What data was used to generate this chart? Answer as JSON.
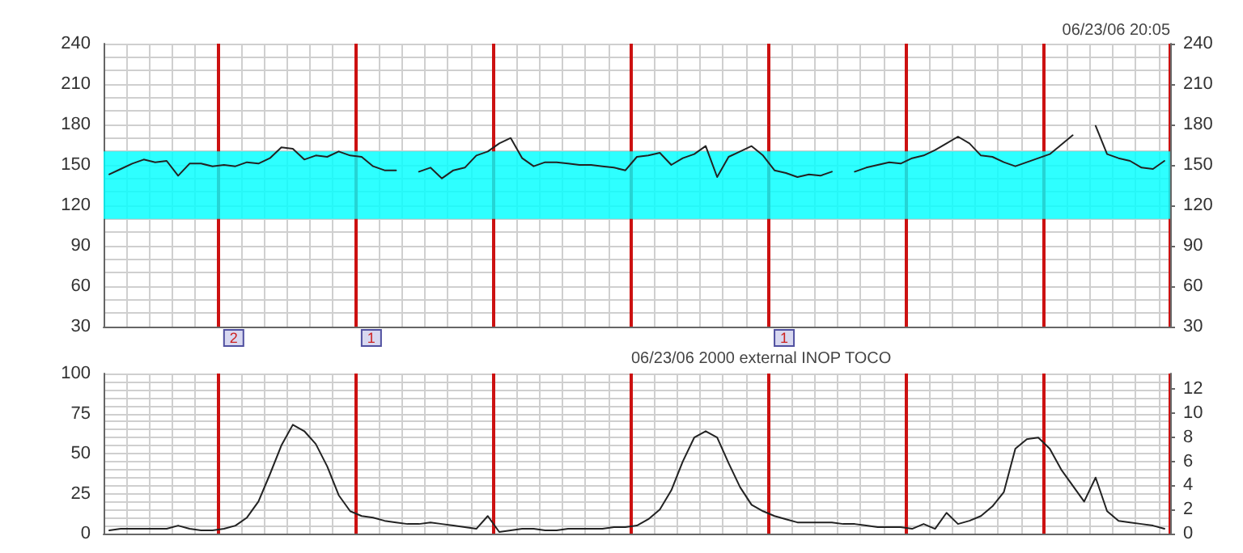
{
  "chart_data": [
    {
      "type": "line",
      "annotations": [
        "06/23/06 20:05",
        "2",
        "1",
        "1"
      ],
      "categories": [
        null,
        null,
        null,
        null,
        null,
        null,
        null,
        null,
        null,
        null,
        null,
        null,
        null,
        null,
        null,
        null,
        null,
        null,
        null,
        null,
        null,
        null,
        null,
        null,
        null,
        null,
        null,
        null,
        null,
        null,
        null,
        null,
        null,
        null,
        null,
        null,
        null,
        null,
        null,
        null,
        null,
        null,
        null,
        null,
        null,
        null,
        null,
        null,
        null,
        null,
        null,
        null,
        null,
        null,
        null,
        null,
        null,
        null,
        null,
        null,
        null,
        null,
        null,
        null,
        null,
        null,
        null,
        null,
        null,
        null,
        null,
        null,
        null,
        null,
        null,
        null,
        null,
        null,
        null,
        null,
        null,
        null,
        null,
        null,
        null,
        null,
        null,
        null,
        null,
        null,
        null,
        null,
        null
      ],
      "series": [
        {
          "color": "#222222",
          "values": [
            143,
            147,
            151,
            154,
            152,
            153,
            142,
            151,
            151,
            149,
            150,
            149,
            152,
            151,
            155,
            163,
            162,
            154,
            157,
            156,
            160,
            157,
            156,
            149,
            146,
            146,
            null,
            145,
            148,
            140,
            146,
            148,
            157,
            160,
            166,
            170,
            155,
            149,
            152,
            152,
            151,
            150,
            150,
            149,
            148,
            146,
            156,
            157,
            159,
            150,
            155,
            158,
            164,
            141,
            156,
            160,
            164,
            157,
            146,
            144,
            141,
            143,
            142,
            145,
            null,
            145,
            148,
            150,
            152,
            151,
            155,
            157,
            161,
            166,
            171,
            166,
            157,
            156,
            152,
            149,
            152,
            155,
            158,
            165,
            172,
            null,
            179,
            158,
            155,
            153,
            148,
            147,
            153
          ]
        }
      ],
      "ylim": [
        30,
        240
      ],
      "yticks": [
        30,
        {
          "value": 40,
          "label": null
        },
        {
          "value": 50,
          "label": null
        },
        60,
        {
          "value": 70,
          "label": null
        },
        {
          "value": 80,
          "label": null
        },
        90,
        {
          "value": 100,
          "label": null
        },
        {
          "value": 110,
          "label": null
        },
        120,
        {
          "value": 130,
          "label": null
        },
        {
          "value": 140,
          "label": null
        },
        150,
        {
          "value": 160,
          "label": null
        },
        {
          "value": 170,
          "label": null
        },
        180,
        {
          "value": 190,
          "label": null
        },
        {
          "value": 200,
          "label": null
        },
        210,
        {
          "value": 220,
          "label": null
        },
        {
          "value": 230,
          "label": null
        },
        240
      ],
      "y2lim": [
        30,
        240
      ],
      "y2ticks": [
        30,
        60,
        90,
        120,
        150,
        180,
        210,
        240
      ],
      "tick_labels": "y",
      "grid": true,
      "marker": "none",
      "line_style": "solid",
      "bands": [
        {
          "axis": "y",
          "from": 110,
          "to": 160,
          "color": "#00ffff"
        }
      ]
    },
    {
      "type": "line",
      "annotations": [
        "06/23/06 2000 external INOP TOCO"
      ],
      "categories": [
        null,
        null,
        null,
        null,
        null,
        null,
        null,
        null,
        null,
        null,
        null,
        null,
        null,
        null,
        null,
        null,
        null,
        null,
        null,
        null,
        null,
        null,
        null,
        null,
        null,
        null,
        null,
        null,
        null,
        null,
        null,
        null,
        null,
        null,
        null,
        null,
        null,
        null,
        null,
        null,
        null,
        null,
        null,
        null,
        null,
        null,
        null,
        null,
        null,
        null,
        null,
        null,
        null,
        null,
        null,
        null,
        null,
        null,
        null,
        null,
        null,
        null,
        null,
        null,
        null,
        null,
        null,
        null,
        null,
        null,
        null,
        null,
        null,
        null,
        null,
        null,
        null,
        null,
        null,
        null,
        null,
        null,
        null,
        null,
        null,
        null,
        null,
        null,
        null,
        null,
        null,
        null,
        null
      ],
      "series": [
        {
          "color": "#222222",
          "values": [
            2,
            3,
            3,
            3,
            3,
            3,
            5,
            3,
            2,
            2,
            3,
            5,
            10,
            20,
            37,
            55,
            68,
            64,
            56,
            42,
            24,
            14,
            11,
            10,
            8,
            7,
            6,
            6,
            7,
            6,
            5,
            4,
            3,
            11,
            1,
            2,
            3,
            3,
            2,
            2,
            3,
            3,
            3,
            3,
            4,
            4,
            5,
            9,
            15,
            27,
            45,
            60,
            64,
            60,
            44,
            29,
            18,
            14,
            11,
            9,
            7,
            7,
            7,
            7,
            6,
            6,
            5,
            4,
            4,
            4,
            3,
            6,
            3,
            13,
            6,
            8,
            11,
            17,
            26,
            53,
            59,
            60,
            53,
            40,
            30,
            20,
            35,
            14,
            8,
            7,
            6,
            5,
            3
          ]
        }
      ],
      "ylim": [
        0,
        100
      ],
      "yticks": [
        0,
        {
          "value": 5,
          "label": null
        },
        {
          "value": 10,
          "label": null
        },
        {
          "value": 15,
          "label": null
        },
        {
          "value": 20,
          "label": null
        },
        25,
        {
          "value": 30,
          "label": null
        },
        {
          "value": 35,
          "label": null
        },
        {
          "value": 40,
          "label": null
        },
        {
          "value": 45,
          "label": null
        },
        50,
        {
          "value": 55,
          "label": null
        },
        {
          "value": 60,
          "label": null
        },
        {
          "value": 65,
          "label": null
        },
        {
          "value": 70,
          "label": null
        },
        75,
        {
          "value": 80,
          "label": null
        },
        {
          "value": 85,
          "label": null
        },
        {
          "value": 90,
          "label": null
        },
        {
          "value": 95,
          "label": null
        },
        100
      ],
      "y2lim": [
        0,
        13.3
      ],
      "y2ticks": [
        0,
        2,
        4,
        6,
        8,
        10,
        12
      ],
      "tick_labels": "y",
      "grid": true,
      "marker": "none",
      "line_style": "solid"
    }
  ]
}
